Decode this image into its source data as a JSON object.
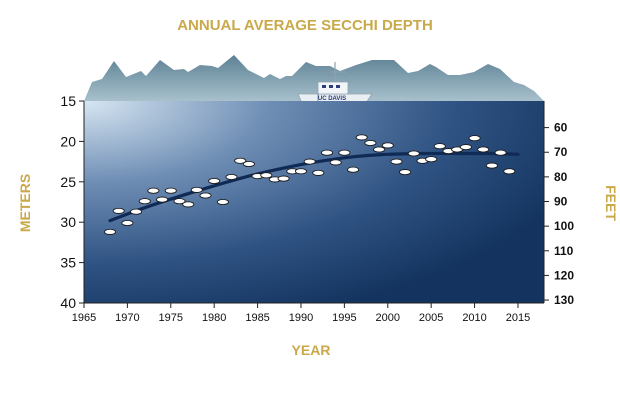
{
  "chart_data": {
    "type": "scatter",
    "title": "ANNUAL AVERAGE SECCHI DEPTH",
    "xlabel": "YEAR",
    "ylabel": "METERS",
    "y2label": "FEET",
    "xlim": [
      1965,
      2018
    ],
    "ylim": [
      15,
      40
    ],
    "y_inverted": true,
    "y2lim": [
      49.2,
      131.2
    ],
    "x_ticks": [
      1965,
      1970,
      1975,
      1980,
      1985,
      1990,
      1995,
      2000,
      2005,
      2010,
      2015
    ],
    "y_ticks": [
      15,
      20,
      25,
      30,
      35,
      40
    ],
    "y2_ticks": [
      60,
      70,
      80,
      90,
      100,
      110,
      120,
      130
    ],
    "boat_label": "UC DAVIS",
    "series": [
      {
        "x": [
          1968,
          1969,
          1970,
          1971,
          1972,
          1973,
          1974,
          1975,
          1976,
          1977,
          1978,
          1979,
          1980,
          1981,
          1982,
          1983,
          1984,
          1985,
          1986,
          1987,
          1988,
          1989,
          1990,
          1991,
          1992,
          1993,
          1994,
          1995,
          1996,
          1997,
          1998,
          1999,
          2000,
          2001,
          2002,
          2003,
          2004,
          2005,
          2006,
          2007,
          2008,
          2009,
          2010,
          2011,
          2012,
          2013,
          2014
        ],
        "values": [
          31.2,
          28.6,
          30.1,
          28.7,
          27.4,
          26.1,
          27.2,
          26.1,
          27.4,
          27.8,
          26.0,
          26.7,
          24.9,
          27.5,
          24.4,
          22.4,
          22.8,
          24.3,
          24.2,
          24.7,
          24.6,
          23.7,
          23.7,
          22.5,
          23.9,
          21.4,
          22.6,
          21.4,
          23.5,
          19.5,
          20.2,
          21.0,
          20.5,
          22.5,
          23.8,
          21.5,
          22.4,
          22.2,
          20.6,
          21.2,
          21.0,
          20.7,
          19.6,
          21.0,
          23.0,
          21.4,
          23.7
        ]
      }
    ],
    "trend": {
      "x": [
        1968,
        1972,
        1976,
        1980,
        1984,
        1988,
        1992,
        1996,
        2000,
        2004,
        2008,
        2012,
        2015
      ],
      "values": [
        29.8,
        28.2,
        26.8,
        25.5,
        24.3,
        23.3,
        22.5,
        21.9,
        21.6,
        21.5,
        21.5,
        21.5,
        21.6
      ]
    }
  }
}
